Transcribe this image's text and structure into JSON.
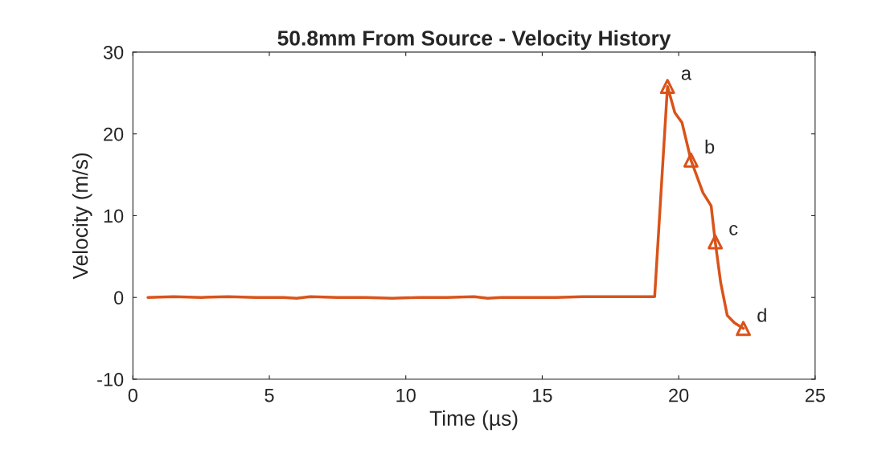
{
  "chart_data": {
    "type": "line",
    "title": "50.8mm From Source - Velocity History",
    "xlabel": "Time (µs)",
    "ylabel": "Velocity (m/s)",
    "xlim": [
      0,
      25
    ],
    "xticks": [
      0,
      5,
      10,
      15,
      20,
      25
    ],
    "ylim": [
      -10,
      30
    ],
    "yticks": [
      -10,
      0,
      10,
      20,
      30
    ],
    "grid": false,
    "legend": false,
    "series": [
      {
        "color": "#d95319",
        "marker": "none",
        "x": [
          0.55,
          1.5,
          2.5,
          3.5,
          4.5,
          5.5,
          6.0,
          6.5,
          7.5,
          8.5,
          9.5,
          10.5,
          11.5,
          12.5,
          13.0,
          13.5,
          14.5,
          15.5,
          16.5,
          17.5,
          18.5,
          19.12,
          19.59,
          19.86,
          20.12,
          20.45,
          20.89,
          21.19,
          21.34,
          21.54,
          21.78,
          22.04,
          22.37
        ],
        "values": [
          0,
          0.1,
          0,
          0.1,
          0,
          0,
          -0.1,
          0.1,
          0,
          0,
          -0.1,
          0,
          0,
          0.1,
          -0.1,
          0,
          0,
          0,
          0.1,
          0.1,
          0.1,
          0.1,
          25.8,
          22.6,
          21.4,
          16.8,
          12.8,
          11.2,
          6.8,
          1.8,
          -2.2,
          -3.1,
          -3.8
        ]
      },
      {
        "type": "scatter",
        "color": "#d95319",
        "marker": "triangle",
        "x": [
          19.59,
          20.45,
          21.34,
          22.37
        ],
        "values": [
          25.8,
          16.8,
          6.8,
          -3.8
        ]
      }
    ],
    "annotations": [
      {
        "text": "a",
        "x": 19.59,
        "y": 25.8
      },
      {
        "text": "b",
        "x": 20.45,
        "y": 16.8
      },
      {
        "text": "c",
        "x": 21.34,
        "y": 6.8
      },
      {
        "text": "d",
        "x": 22.37,
        "y": -3.8
      }
    ]
  }
}
